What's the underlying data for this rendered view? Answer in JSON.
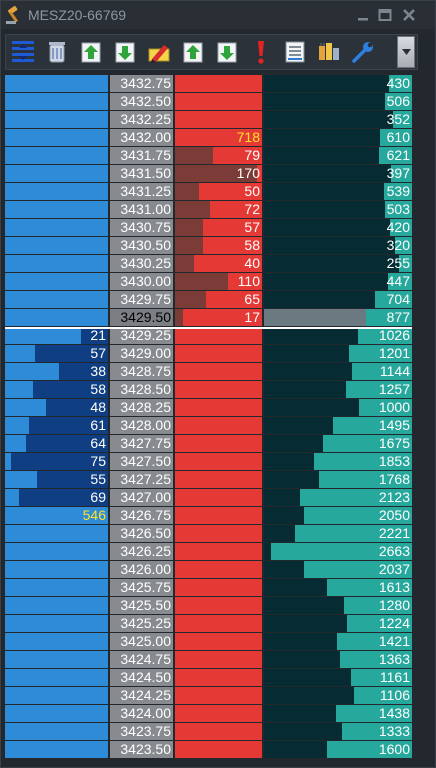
{
  "window": {
    "title": "MESZ20-66769"
  },
  "toolbar": {
    "buttons": [
      {
        "name": "center-ladder-icon"
      },
      {
        "name": "trash-icon"
      },
      {
        "name": "buy-arrow-up-icon"
      },
      {
        "name": "sell-arrow-down-icon"
      },
      {
        "name": "pencil-tool-icon"
      },
      {
        "name": "buy-stop-up-icon"
      },
      {
        "name": "sell-stop-down-icon"
      },
      {
        "name": "alert-exclamation-icon"
      },
      {
        "name": "chart-settings-icon"
      },
      {
        "name": "plugins-icon"
      },
      {
        "name": "wrench-icon"
      }
    ]
  },
  "colors": {
    "bid_cell": "#2d8bd7",
    "bid_bar": "#0f3f82",
    "price_cell": "#878b90",
    "ask_cell": "#e53935",
    "ask_bar": "#7b3b37",
    "volume_cell": "#062b33",
    "volume_bar": "#27a89c",
    "highlight_text": "#ffe22a"
  },
  "ladder": {
    "last_price": "3429.50",
    "max_bid": 80,
    "max_ask": 180,
    "max_volume": 2800,
    "rows": [
      {
        "price": "3432.75",
        "bid": "",
        "ask": "",
        "volume": "430"
      },
      {
        "price": "3432.50",
        "bid": "",
        "ask": "",
        "volume": "506"
      },
      {
        "price": "3432.25",
        "bid": "",
        "ask": "",
        "volume": "352"
      },
      {
        "price": "3432.00",
        "bid": "",
        "ask": "718",
        "volume": "610",
        "ask_highlight": true
      },
      {
        "price": "3431.75",
        "bid": "",
        "ask": "79",
        "volume": "621"
      },
      {
        "price": "3431.50",
        "bid": "",
        "ask": "170",
        "volume": "397"
      },
      {
        "price": "3431.25",
        "bid": "",
        "ask": "50",
        "volume": "539"
      },
      {
        "price": "3431.00",
        "bid": "",
        "ask": "72",
        "volume": "503"
      },
      {
        "price": "3430.75",
        "bid": "",
        "ask": "57",
        "volume": "420"
      },
      {
        "price": "3430.50",
        "bid": "",
        "ask": "58",
        "volume": "320"
      },
      {
        "price": "3430.25",
        "bid": "",
        "ask": "40",
        "volume": "255"
      },
      {
        "price": "3430.00",
        "bid": "",
        "ask": "110",
        "volume": "447"
      },
      {
        "price": "3429.75",
        "bid": "",
        "ask": "65",
        "volume": "704"
      },
      {
        "price": "3429.50",
        "bid": "",
        "ask": "17",
        "volume": "877",
        "last": true
      },
      {
        "price": "3429.25",
        "bid": "21",
        "ask": "",
        "volume": "1026"
      },
      {
        "price": "3429.00",
        "bid": "57",
        "ask": "",
        "volume": "1201"
      },
      {
        "price": "3428.75",
        "bid": "38",
        "ask": "",
        "volume": "1144"
      },
      {
        "price": "3428.50",
        "bid": "58",
        "ask": "",
        "volume": "1257"
      },
      {
        "price": "3428.25",
        "bid": "48",
        "ask": "",
        "volume": "1000"
      },
      {
        "price": "3428.00",
        "bid": "61",
        "ask": "",
        "volume": "1495"
      },
      {
        "price": "3427.75",
        "bid": "64",
        "ask": "",
        "volume": "1675"
      },
      {
        "price": "3427.50",
        "bid": "75",
        "ask": "",
        "volume": "1853"
      },
      {
        "price": "3427.25",
        "bid": "55",
        "ask": "",
        "volume": "1768"
      },
      {
        "price": "3427.00",
        "bid": "69",
        "ask": "",
        "volume": "2123"
      },
      {
        "price": "3426.75",
        "bid": "546",
        "ask": "",
        "volume": "2050",
        "bid_highlight": true
      },
      {
        "price": "3426.50",
        "bid": "",
        "ask": "",
        "volume": "2221"
      },
      {
        "price": "3426.25",
        "bid": "",
        "ask": "",
        "volume": "2663"
      },
      {
        "price": "3426.00",
        "bid": "",
        "ask": "",
        "volume": "2037"
      },
      {
        "price": "3425.75",
        "bid": "",
        "ask": "",
        "volume": "1613"
      },
      {
        "price": "3425.50",
        "bid": "",
        "ask": "",
        "volume": "1280"
      },
      {
        "price": "3425.25",
        "bid": "",
        "ask": "",
        "volume": "1224"
      },
      {
        "price": "3425.00",
        "bid": "",
        "ask": "",
        "volume": "1421"
      },
      {
        "price": "3424.75",
        "bid": "",
        "ask": "",
        "volume": "1363"
      },
      {
        "price": "3424.50",
        "bid": "",
        "ask": "",
        "volume": "1161"
      },
      {
        "price": "3424.25",
        "bid": "",
        "ask": "",
        "volume": "1106"
      },
      {
        "price": "3424.00",
        "bid": "",
        "ask": "",
        "volume": "1438"
      },
      {
        "price": "3423.75",
        "bid": "",
        "ask": "",
        "volume": "1333"
      },
      {
        "price": "3423.50",
        "bid": "",
        "ask": "",
        "volume": "1600"
      }
    ]
  }
}
